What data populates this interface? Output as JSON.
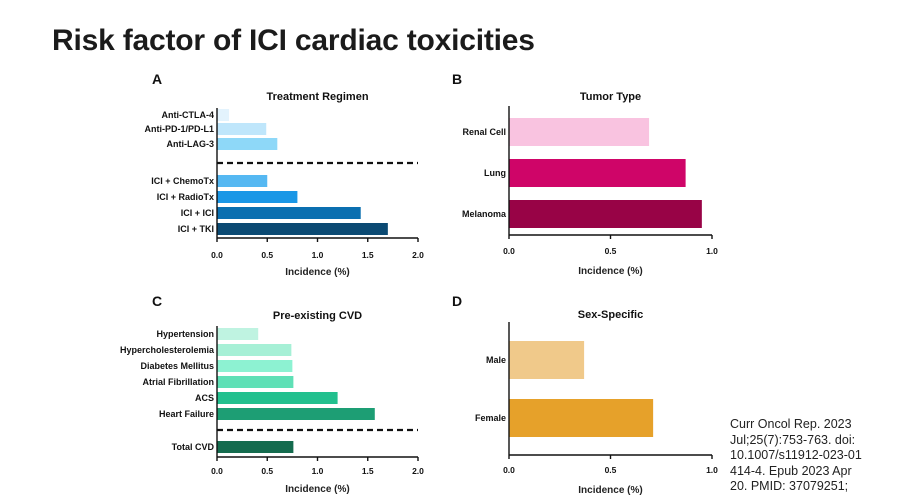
{
  "page": {
    "title": "Risk factor of ICI cardiac toxicities",
    "citation": "Curr Oncol Rep. 2023\nJul;25(7):753-763. doi:\n10.1007/s11912-023-01\n414-4. Epub 2023 Apr\n20. PMID: 37079251;"
  },
  "chart_data": [
    {
      "id": "A",
      "type": "bar",
      "orientation": "horizontal",
      "panel_letter": "A",
      "title": "Treatment Regimen",
      "xlabel": "Incidence (%)",
      "ylabel": "",
      "xlim": [
        0,
        2.0
      ],
      "xticks": [
        "0.0",
        "0.5",
        "1.0",
        "1.5",
        "2.0"
      ],
      "groups": [
        {
          "categories": [
            "Anti-CTLA-4",
            "Anti-PD-1/PD-L1",
            "Anti-LAG-3"
          ],
          "values": [
            0.12,
            0.49,
            0.6
          ],
          "colors": [
            "#e3f3fd",
            "#bfe6fb",
            "#8ed8f8"
          ]
        },
        {
          "categories": [
            "ICI + ChemoTx",
            "ICI + RadioTx",
            "ICI + ICI",
            "ICI + TKI"
          ],
          "values": [
            0.5,
            0.8,
            1.43,
            1.7
          ],
          "colors": [
            "#55b8f2",
            "#1a97e6",
            "#0a6fb0",
            "#0b4a73"
          ]
        }
      ],
      "separator": "dashed",
      "grid": false
    },
    {
      "id": "B",
      "type": "bar",
      "orientation": "horizontal",
      "panel_letter": "B",
      "title": "Tumor Type",
      "xlabel": "Incidence (%)",
      "ylabel": "",
      "xlim": [
        0,
        1.0
      ],
      "xticks": [
        "0.0",
        "0.5",
        "1.0"
      ],
      "groups": [
        {
          "categories": [
            "Renal Cell",
            "Lung",
            "Melanoma"
          ],
          "values": [
            0.69,
            0.87,
            0.95
          ],
          "colors": [
            "#f9c3e0",
            "#cf0568",
            "#980346"
          ]
        }
      ],
      "grid": false
    },
    {
      "id": "C",
      "type": "bar",
      "orientation": "horizontal",
      "panel_letter": "C",
      "title": "Pre-existing CVD",
      "xlabel": "Incidence (%)",
      "ylabel": "",
      "xlim": [
        0,
        2.0
      ],
      "xticks": [
        "0.0",
        "0.5",
        "1.0",
        "1.5",
        "2.0"
      ],
      "groups": [
        {
          "categories": [
            "Hypertension",
            "Hypercholesterolemia",
            "Diabetes Mellitus",
            "Atrial Fibrillation",
            "ACS",
            "Heart Failure"
          ],
          "values": [
            0.41,
            0.74,
            0.75,
            0.76,
            1.2,
            1.57
          ],
          "colors": [
            "#bff3e1",
            "#a6f0d6",
            "#8df2d2",
            "#5fe0b6",
            "#22c08e",
            "#1d9e74"
          ]
        },
        {
          "categories": [
            "Total CVD"
          ],
          "values": [
            0.76
          ],
          "colors": [
            "#146b4e"
          ]
        }
      ],
      "separator": "dashed",
      "grid": false
    },
    {
      "id": "D",
      "type": "bar",
      "orientation": "horizontal",
      "panel_letter": "D",
      "title": "Sex-Specific",
      "xlabel": "Incidence (%)",
      "ylabel": "",
      "xlim": [
        0,
        1.0
      ],
      "xticks": [
        "0.0",
        "0.5",
        "1.0"
      ],
      "groups": [
        {
          "categories": [
            "Male",
            "Female"
          ],
          "values": [
            0.37,
            0.71
          ],
          "colors": [
            "#f0c98a",
            "#e6a12a"
          ]
        }
      ],
      "grid": false
    }
  ]
}
